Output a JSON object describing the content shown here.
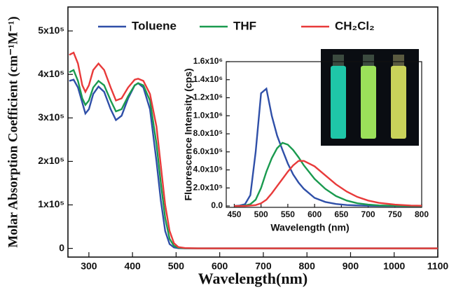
{
  "chart_data": [
    {
      "type": "line",
      "y_label": "Molar Absorption Coefficient (cm⁻¹M⁻¹)",
      "x_label": "Wavelength(nm)",
      "x": [
        255,
        265,
        275,
        285,
        292,
        300,
        310,
        322,
        335,
        350,
        362,
        375,
        390,
        405,
        413,
        425,
        440,
        455,
        465,
        475,
        485,
        495,
        505,
        520,
        550,
        600,
        700,
        800,
        900,
        1000,
        1100
      ],
      "series": [
        {
          "name": "Toluene",
          "color": "#2f4fa8",
          "values": [
            385000,
            388000,
            370000,
            335000,
            310000,
            320000,
            355000,
            372000,
            360000,
            320000,
            295000,
            305000,
            345000,
            375000,
            380000,
            370000,
            320000,
            200000,
            110000,
            40000,
            10000,
            2000,
            500,
            0,
            0,
            0,
            0,
            0,
            0,
            0,
            0
          ]
        },
        {
          "name": "THF",
          "color": "#1a9a4f",
          "values": [
            405000,
            410000,
            385000,
            345000,
            330000,
            340000,
            370000,
            385000,
            375000,
            340000,
            315000,
            320000,
            350000,
            375000,
            380000,
            375000,
            340000,
            240000,
            150000,
            70000,
            22000,
            6000,
            1500,
            300,
            0,
            0,
            0,
            0,
            0,
            0,
            0
          ]
        },
        {
          "name": "CH₂Cl₂",
          "color": "#e83a3a",
          "values": [
            445000,
            450000,
            425000,
            375000,
            360000,
            375000,
            410000,
            425000,
            410000,
            370000,
            340000,
            345000,
            370000,
            388000,
            390000,
            385000,
            355000,
            280000,
            190000,
            100000,
            40000,
            12000,
            3000,
            800,
            0,
            0,
            0,
            0,
            0,
            0,
            0
          ]
        }
      ],
      "xlim": [
        252,
        1100
      ],
      "xticks": [
        300,
        400,
        500,
        600,
        700,
        800,
        900,
        1000,
        1100
      ],
      "ylim": [
        -20000,
        555000
      ],
      "yticks": [
        {
          "value": 0,
          "label": "0"
        },
        {
          "value": 100000,
          "label": "1x10⁵"
        },
        {
          "value": 200000,
          "label": "2x10⁵"
        },
        {
          "value": 300000,
          "label": "3x10⁵"
        },
        {
          "value": 400000,
          "label": "4x10⁵"
        },
        {
          "value": 500000,
          "label": "5x10⁵"
        }
      ],
      "legend": "top"
    },
    {
      "type": "line",
      "y_label": "Fluorescence Intensity (cps)",
      "x_label": "Wavelength (nm)",
      "x": [
        450,
        460,
        470,
        480,
        490,
        500,
        510,
        520,
        530,
        540,
        550,
        560,
        570,
        580,
        600,
        620,
        640,
        660,
        680,
        700,
        720,
        750,
        780,
        800
      ],
      "series": [
        {
          "color": "#2f4fa8",
          "values": [
            0,
            5000,
            20000,
            120000,
            600000,
            1250000,
            1300000,
            1000000,
            780000,
            620000,
            470000,
            350000,
            260000,
            190000,
            90000,
            45000,
            22000,
            11000,
            6000,
            3000,
            1000,
            0,
            0,
            0
          ]
        },
        {
          "color": "#1a9a4f",
          "values": [
            0,
            0,
            5000,
            20000,
            70000,
            200000,
            380000,
            530000,
            640000,
            700000,
            680000,
            620000,
            540000,
            450000,
            300000,
            190000,
            110000,
            60000,
            30000,
            15000,
            7000,
            3000,
            0,
            0
          ]
        },
        {
          "color": "#e83a3a",
          "values": [
            0,
            0,
            0,
            5000,
            10000,
            30000,
            70000,
            140000,
            220000,
            300000,
            380000,
            450000,
            500000,
            500000,
            440000,
            340000,
            240000,
            160000,
            100000,
            60000,
            35000,
            15000,
            5000,
            3000
          ]
        }
      ],
      "xlim": [
        435,
        800
      ],
      "xticks": [
        450,
        500,
        550,
        600,
        650,
        700,
        750,
        800
      ],
      "ylim": [
        -15000,
        1600000
      ],
      "yticks": [
        {
          "value": 0,
          "label": "0.0"
        },
        {
          "value": 200000,
          "label": "2.0x10⁵"
        },
        {
          "value": 400000,
          "label": "4.0x10⁵"
        },
        {
          "value": 600000,
          "label": "6.0x10⁵"
        },
        {
          "value": 800000,
          "label": "8.0x10⁵"
        },
        {
          "value": 1000000,
          "label": "1.0x10⁶"
        },
        {
          "value": 1200000,
          "label": "1.2x10⁶"
        },
        {
          "value": 1400000,
          "label": "1.4x10⁶"
        },
        {
          "value": 1600000,
          "label": "1.6x10⁶"
        }
      ]
    }
  ]
}
